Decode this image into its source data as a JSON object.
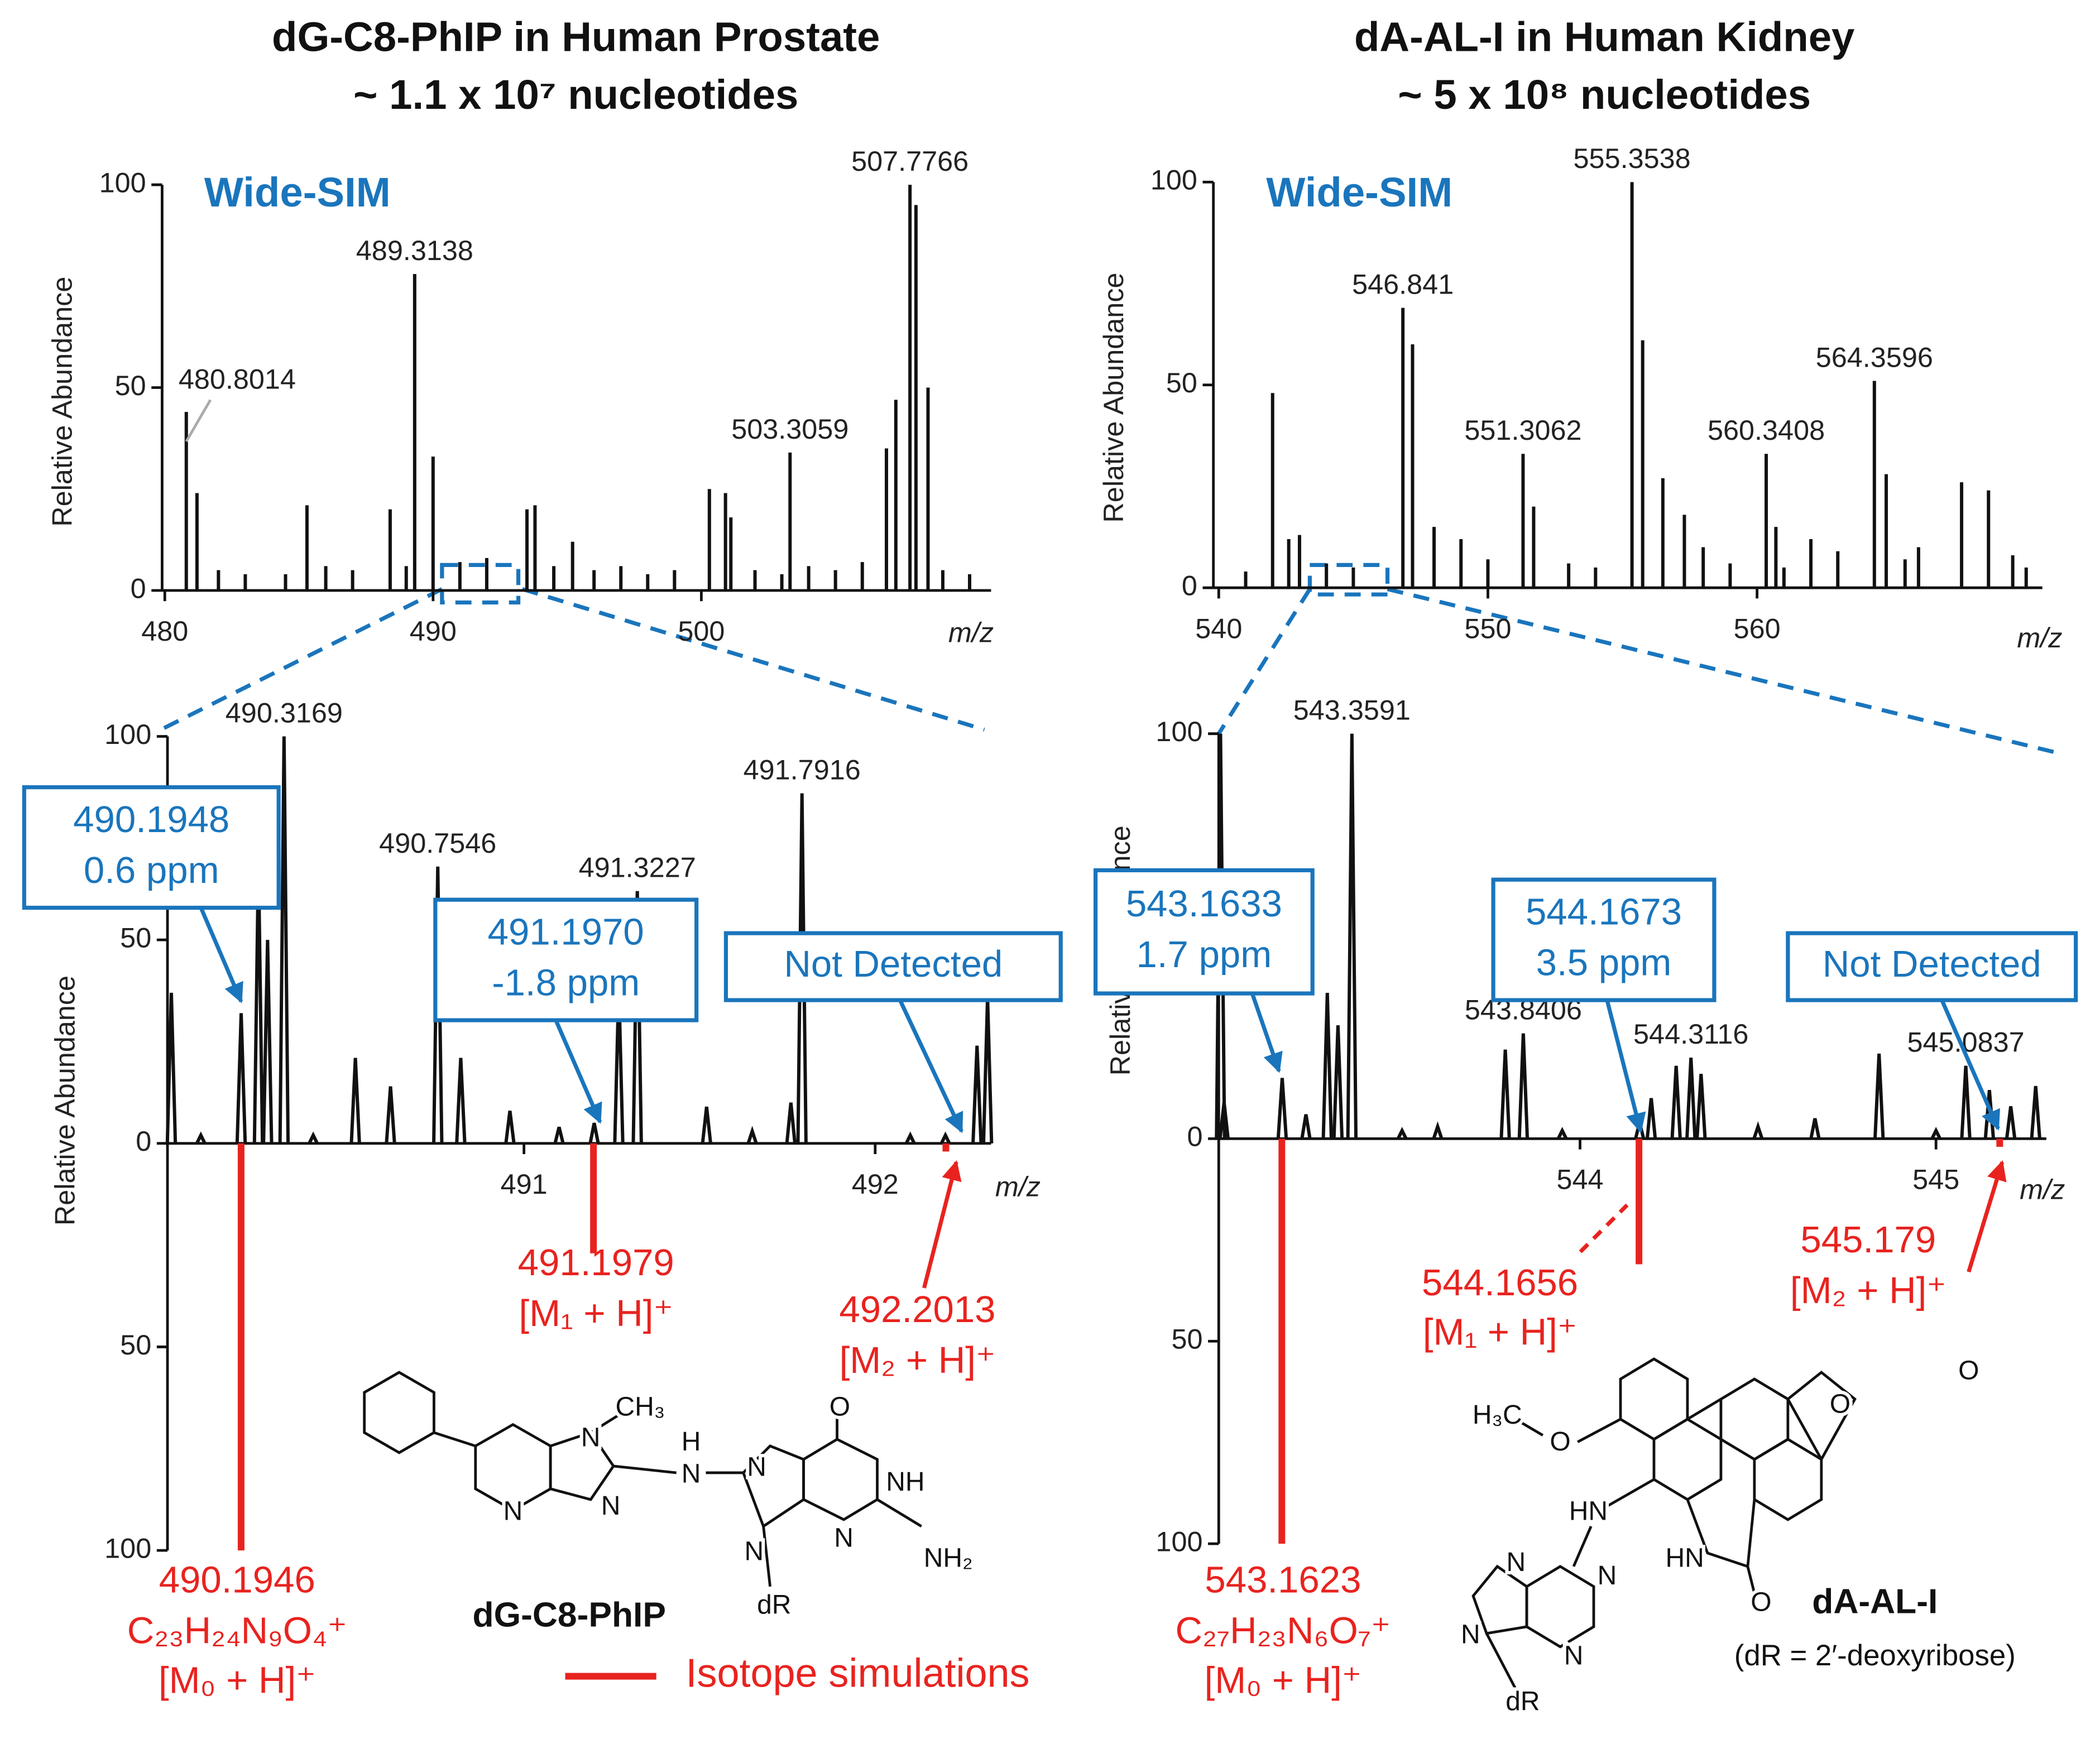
{
  "chart_data": [
    {
      "type": "stem",
      "title": "dG-C8-PhIP in Human Prostate",
      "subtitle": "~ 1.1 x 10⁷ nucleotides",
      "annotation": "Wide-SIM",
      "annotation_color": "#1a75bc",
      "x_label": "m/z",
      "y_label": "Relative Abundance",
      "color": "#111111",
      "xlim": [
        479.9,
        510.8
      ],
      "xticks": [
        480,
        490,
        500
      ],
      "ylim": [
        0,
        100
      ],
      "yticks": [
        0,
        50,
        100
      ],
      "x": [
        481.2,
        485.3,
        488.4,
        490.0,
        491.0,
        493.5,
        493.8,
        495.2,
        500.3,
        500.9,
        501.1,
        506.9,
        507.25,
        508.0,
        508.45,
        482,
        483,
        484.5,
        486,
        487,
        489,
        492,
        494.5,
        496,
        497,
        498,
        499,
        502,
        503,
        504,
        505,
        506,
        509,
        510
      ],
      "values": [
        24,
        21,
        20,
        33,
        7,
        20,
        21,
        12,
        25,
        24,
        18,
        35,
        47,
        95,
        50,
        5,
        4,
        4,
        6,
        5,
        6,
        8,
        6,
        5,
        6,
        4,
        5,
        5,
        4,
        6,
        5,
        7,
        5,
        4
      ],
      "labeled_peaks": [
        {
          "x": 480.8014,
          "value": 44
        },
        {
          "x": 489.3138,
          "value": 78
        },
        {
          "x": 503.3059,
          "value": 34
        },
        {
          "x": 507.7766,
          "value": 100
        }
      ]
    },
    {
      "type": "stem",
      "title": "dA-AL-I in Human Kidney",
      "subtitle": "~ 5 x 10⁸ nucleotides",
      "annotation": "Wide-SIM",
      "annotation_color": "#1a75bc",
      "x_label": "m/z",
      "y_label": "Relative Abundance",
      "color": "#111111",
      "xlim": [
        539.8,
        570.6
      ],
      "xticks": [
        540,
        550,
        560
      ],
      "ylim": [
        0,
        100
      ],
      "yticks": [
        0,
        50,
        100
      ],
      "x": [
        542.0,
        542.6,
        543.0,
        547.2,
        548.0,
        549.0,
        551.7,
        555.75,
        556.5,
        557.3,
        558.0,
        560.7,
        562.0,
        563.0,
        564.8,
        566.0,
        567.6,
        568.6,
        569.5,
        541,
        544,
        545,
        550,
        553,
        554,
        559,
        561,
        565.5,
        570
      ],
      "values": [
        48,
        12,
        13,
        60,
        15,
        12,
        20,
        61,
        27,
        18,
        10,
        15,
        12,
        9,
        28,
        10,
        26,
        24,
        8,
        4,
        6,
        5,
        7,
        6,
        5,
        6,
        5,
        7,
        5
      ],
      "labeled_peaks": [
        {
          "x": 546.841,
          "value": 69
        },
        {
          "x": 551.3062,
          "value": 33
        },
        {
          "x": 555.3538,
          "value": 100
        },
        {
          "x": 560.3408,
          "value": 33
        },
        {
          "x": 564.3596,
          "value": 51
        }
      ]
    },
    {
      "type": "profile",
      "x_label": "m/z",
      "y_label": "Relative Abundance",
      "color": "#111111",
      "annotation_color": "#1a75bc",
      "xlim": [
        489.985,
        492.33
      ],
      "xticks": [
        491,
        492
      ],
      "ylim": [
        -100,
        100
      ],
      "yticks": [
        {
          "value": -100,
          "label": "100"
        },
        {
          "value": -50,
          "label": "50"
        },
        0,
        50,
        100
      ],
      "x": [
        489.996,
        490.1948,
        490.244,
        490.27,
        490.52,
        490.62,
        490.82,
        490.96,
        491.2,
        491.27,
        491.52,
        491.76,
        492.29,
        492.32,
        490.08,
        490.4,
        491.1,
        491.65,
        492.1,
        492.2
      ],
      "values": [
        37,
        32,
        70,
        50,
        21,
        14,
        21,
        8,
        5,
        39,
        9,
        10,
        24,
        36,
        2,
        2,
        4,
        3,
        2,
        2
      ],
      "labeled_peaks": [
        {
          "x": 490.3169,
          "value": 100
        },
        {
          "x": 490.7546,
          "value": 68
        },
        {
          "x": 491.3227,
          "value": 62
        },
        {
          "x": 491.7916,
          "value": 86
        }
      ],
      "boxes": [
        {
          "lines": [
            "490.1948",
            "0.6 ppm"
          ]
        },
        {
          "lines": [
            "491.1970",
            "-1.8 ppm"
          ]
        },
        {
          "lines": [
            "Not Detected"
          ]
        }
      ],
      "simulations": [
        {
          "x": 490.1946,
          "value": -100,
          "formula": "C₂₃H₂₄N₉O₄⁺",
          "ion": "[M₀ + H]⁺"
        },
        {
          "x": 491.1979,
          "value": -27,
          "ion": "[M₁ + H]⁺"
        },
        {
          "x": 492.2013,
          "value": -2,
          "ion": "[M₂ + H]⁺"
        }
      ]
    },
    {
      "type": "profile",
      "x_label": "m/z",
      "y_label": "Relative Abundance",
      "color": "#111111",
      "annotation_color": "#1a75bc",
      "xlim": [
        542.985,
        545.31
      ],
      "xticks": [
        544,
        545
      ],
      "ylim": [
        -100,
        100
      ],
      "yticks": [
        {
          "value": -100,
          "label": "100"
        },
        {
          "value": -50,
          "label": "50"
        },
        0,
        50,
        100
      ],
      "x": [
        542.99,
        543.0,
        543.1633,
        543.23,
        543.29,
        543.32,
        543.79,
        544.1673,
        544.2,
        544.27,
        544.34,
        544.66,
        544.84,
        545.15,
        545.21,
        545.28,
        543.5,
        543.6,
        543.95,
        544.5,
        545.0
      ],
      "values": [
        100,
        9,
        15,
        6,
        36,
        28,
        22,
        4,
        10,
        18,
        16,
        5,
        21,
        12,
        8,
        13,
        2,
        3,
        2,
        3,
        2
      ],
      "labeled_peaks": [
        {
          "x": 543.3591,
          "value": 100
        },
        {
          "x": 543.8406,
          "value": 26
        },
        {
          "x": 544.3116,
          "value": 20
        },
        {
          "x": 545.0837,
          "value": 18
        }
      ],
      "boxes": [
        {
          "lines": [
            "543.1633",
            "1.7 ppm"
          ]
        },
        {
          "lines": [
            "544.1673",
            "3.5 ppm"
          ]
        },
        {
          "lines": [
            "Not Detected"
          ]
        }
      ],
      "simulations": [
        {
          "x": 543.1623,
          "value": -100,
          "formula": "C₂₇H₂₃N₆O₇⁺",
          "ion": "[M₀ + H]⁺"
        },
        {
          "x": 544.1656,
          "value": -31,
          "ion": "[M₁ + H]⁺"
        },
        {
          "x": 545.179,
          "value": -2,
          "ion": "[M₂ + H]⁺"
        }
      ]
    }
  ],
  "legend": {
    "label": "Isotope simulations",
    "color": "#e8231f"
  },
  "structures": [
    {
      "name": "dG-C8-PhIP",
      "atoms": [
        "CH₃",
        "N",
        "H",
        "N",
        "N",
        "N",
        "N",
        "O",
        "NH",
        "N",
        "N",
        "NH₂",
        "dR"
      ]
    },
    {
      "name": "dA-AL-I",
      "note": "(dR = 2′-deoxyribose)",
      "atoms": [
        "H₃C",
        "O",
        "O",
        "O",
        "HN",
        "HN",
        "O",
        "N",
        "N",
        "N",
        "N",
        "dR"
      ]
    }
  ]
}
